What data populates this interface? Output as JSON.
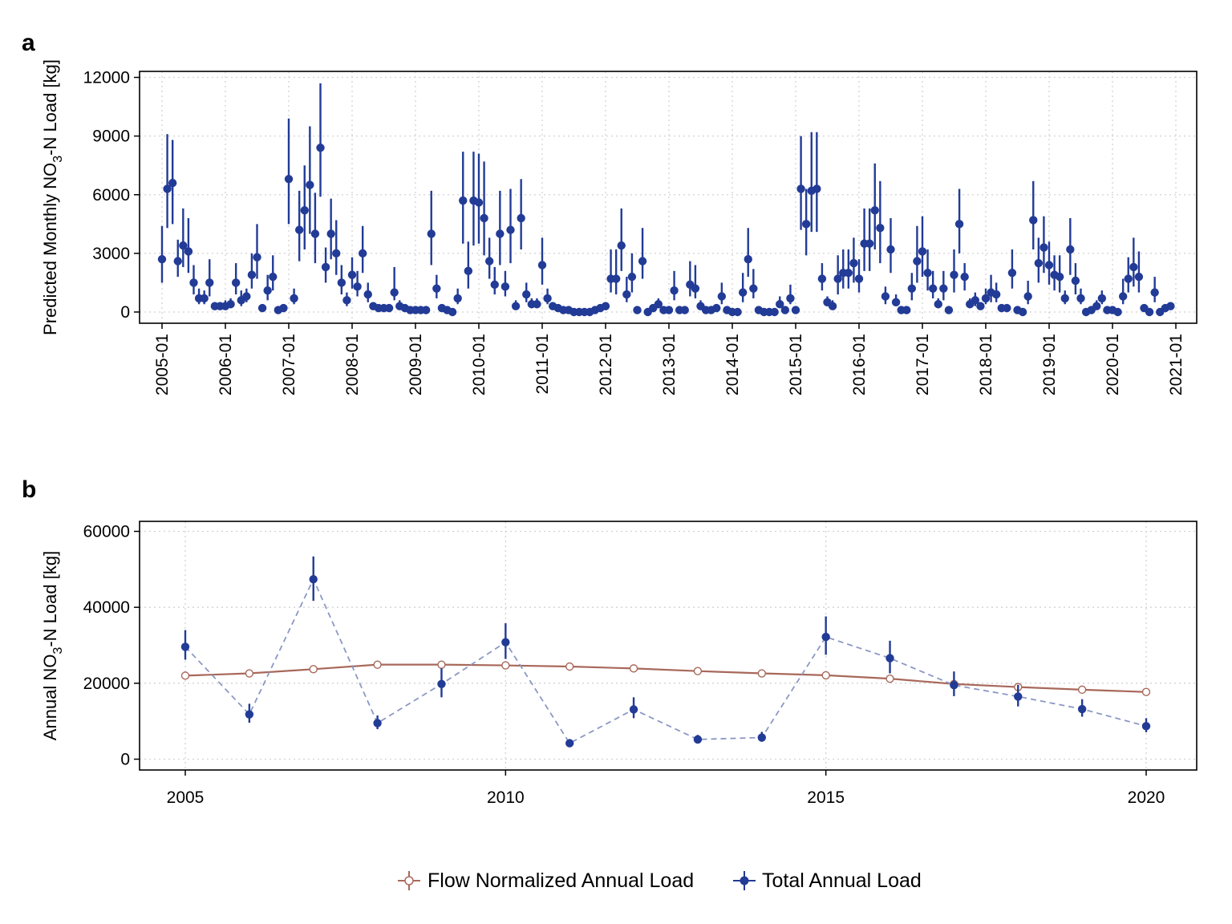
{
  "colors": {
    "total": "#223b96",
    "flow_normalized": "#a8685a",
    "total_dashed": "#8c98c4"
  },
  "panels": {
    "a": {
      "tag": "a",
      "ylabel": "Predicted Monthly NO",
      "ylabel_sub": "3",
      "ylabel_suffix": "-N Load [kg]"
    },
    "b": {
      "tag": "b",
      "ylabel": "Annual NO",
      "ylabel_sub": "3",
      "ylabel_suffix": "-N Load [kg]"
    }
  },
  "legend": {
    "flow_normalized": "Flow Normalized Annual Load",
    "total": "Total Annual Load"
  },
  "chart_data": [
    {
      "type": "scatter",
      "panel": "a",
      "ylabel": "Predicted Monthly NO3-N Load [kg]",
      "ylim": [
        -500,
        12500
      ],
      "yticks": [
        0,
        3000,
        6000,
        9000,
        12000
      ],
      "xticks": [
        "2005-01",
        "2006-01",
        "2007-01",
        "2008-01",
        "2009-01",
        "2010-01",
        "2011-01",
        "2012-01",
        "2013-01",
        "2014-01",
        "2015-01",
        "2016-01",
        "2017-01",
        "2018-01",
        "2019-01",
        "2020-01",
        "2021-01"
      ],
      "grid": true,
      "x_start": "2005-01",
      "series": [
        {
          "name": "Total Annual Load",
          "values": [
            2700,
            6300,
            6600,
            2600,
            3400,
            3100,
            1500,
            700,
            700,
            1500,
            300,
            300,
            300,
            400,
            1500,
            600,
            800,
            1900,
            2800,
            200,
            1100,
            1800,
            100,
            200,
            6800,
            700,
            4200,
            5200,
            6500,
            4000,
            8400,
            2300,
            4000,
            3000,
            1500,
            600,
            1900,
            1300,
            3000,
            900,
            300,
            200,
            200,
            200,
            1000,
            300,
            200,
            100,
            100,
            100,
            100,
            4000,
            1200,
            200,
            100,
            0,
            700,
            5700,
            2100,
            5700,
            5600,
            4800,
            2600,
            1400,
            4000,
            1300,
            4200,
            300,
            4800,
            900,
            400,
            400,
            2400,
            700,
            300,
            200,
            100,
            100,
            0,
            0,
            0,
            0,
            100,
            200,
            300,
            1700,
            1700,
            3400,
            900,
            1800,
            100,
            2600,
            0,
            200,
            400,
            100,
            100,
            1100,
            100,
            100,
            1400,
            1200,
            300,
            100,
            100,
            200,
            800,
            100,
            0,
            0,
            1000,
            2700,
            1200,
            100,
            0,
            0,
            0,
            400,
            100,
            700,
            100,
            6300,
            4500,
            6200,
            6300,
            1700,
            500,
            300,
            1700,
            2000,
            2000,
            2500,
            1700,
            3500,
            3500,
            5200,
            4300,
            800,
            3200,
            500,
            100,
            100,
            1200,
            2600,
            3100,
            2000,
            1200,
            400,
            1200,
            100,
            1900,
            4500,
            1800,
            400,
            600,
            300,
            700,
            1000,
            900,
            200,
            200,
            2000,
            100,
            0,
            800,
            4700,
            2500,
            3300,
            2400,
            1900,
            1800,
            700,
            3200,
            1600,
            700,
            0,
            100,
            300,
            700,
            100,
            100,
            0,
            800,
            1700,
            2300,
            1800,
            200,
            0,
            1000,
            0,
            200,
            300
          ],
          "lower": [
            1500,
            4300,
            4500,
            1800,
            2300,
            2000,
            900,
            400,
            400,
            800,
            100,
            100,
            100,
            200,
            900,
            300,
            500,
            1200,
            1700,
            100,
            600,
            1100,
            50,
            100,
            4500,
            400,
            2600,
            3200,
            4000,
            2500,
            5900,
            1500,
            2700,
            1900,
            900,
            300,
            1200,
            800,
            2000,
            500,
            100,
            100,
            100,
            100,
            600,
            100,
            100,
            50,
            50,
            50,
            50,
            2400,
            700,
            100,
            50,
            0,
            400,
            3500,
            1200,
            3400,
            3500,
            2900,
            1700,
            900,
            2400,
            800,
            2500,
            100,
            3200,
            500,
            200,
            200,
            1400,
            400,
            100,
            100,
            50,
            50,
            0,
            0,
            0,
            0,
            50,
            100,
            100,
            1000,
            900,
            2100,
            500,
            1000,
            50,
            1700,
            0,
            100,
            200,
            50,
            50,
            600,
            50,
            50,
            800,
            700,
            100,
            50,
            50,
            100,
            400,
            50,
            0,
            0,
            500,
            1800,
            700,
            50,
            0,
            0,
            0,
            200,
            50,
            400,
            50,
            4200,
            2900,
            4100,
            4100,
            1100,
            300,
            200,
            900,
            1200,
            1200,
            1500,
            1000,
            2100,
            2100,
            3200,
            2500,
            400,
            2000,
            300,
            50,
            50,
            600,
            1500,
            1800,
            1100,
            700,
            200,
            600,
            50,
            1000,
            3000,
            1100,
            200,
            300,
            100,
            400,
            500,
            500,
            100,
            100,
            1200,
            50,
            0,
            400,
            3200,
            1500,
            2000,
            1400,
            1100,
            1000,
            400,
            1900,
            900,
            400,
            0,
            50,
            100,
            400,
            50,
            50,
            0,
            400,
            1000,
            1300,
            1000,
            100,
            0,
            500,
            0,
            100,
            100
          ],
          "upper": [
            4400,
            9100,
            8800,
            3700,
            5300,
            4800,
            2400,
            1200,
            1100,
            2700,
            500,
            500,
            600,
            700,
            2500,
            1100,
            1200,
            3000,
            4500,
            400,
            1900,
            2900,
            200,
            400,
            9900,
            1200,
            6200,
            7500,
            9500,
            6100,
            11700,
            3300,
            5800,
            4700,
            2400,
            1000,
            2800,
            2100,
            4400,
            1500,
            500,
            400,
            400,
            400,
            2300,
            600,
            400,
            200,
            200,
            200,
            200,
            6200,
            1900,
            400,
            200,
            0,
            1200,
            8200,
            3600,
            8200,
            8100,
            7700,
            3800,
            2300,
            6200,
            2100,
            6300,
            600,
            6800,
            1500,
            700,
            700,
            3800,
            1200,
            500,
            400,
            200,
            200,
            0,
            0,
            0,
            0,
            200,
            300,
            500,
            3200,
            3200,
            5300,
            1800,
            3000,
            200,
            4300,
            0,
            400,
            700,
            200,
            200,
            2100,
            200,
            200,
            2600,
            2400,
            600,
            200,
            200,
            400,
            1500,
            200,
            0,
            0,
            2000,
            4300,
            2200,
            200,
            0,
            0,
            0,
            800,
            200,
            1400,
            200,
            9000,
            6300,
            9200,
            9200,
            2500,
            800,
            600,
            2900,
            3200,
            3200,
            3800,
            2700,
            5300,
            5300,
            7600,
            6700,
            1300,
            4800,
            900,
            200,
            200,
            2000,
            4400,
            4900,
            3200,
            2100,
            700,
            2100,
            200,
            3200,
            6300,
            2500,
            700,
            1000,
            500,
            1200,
            1900,
            1500,
            400,
            400,
            3200,
            200,
            0,
            1600,
            6700,
            3800,
            4900,
            3600,
            2900,
            2900,
            1100,
            4800,
            2500,
            1200,
            0,
            200,
            600,
            1100,
            200,
            200,
            0,
            1700,
            2800,
            3800,
            3100,
            400,
            0,
            1800,
            0,
            400,
            500
          ]
        }
      ]
    },
    {
      "type": "line",
      "panel": "b",
      "ylabel": "Annual NO3-N Load [kg]",
      "ylim": [
        -3000,
        63000
      ],
      "yticks": [
        0,
        20000,
        40000,
        60000
      ],
      "xlim": [
        2004.2,
        2020.8
      ],
      "xticks": [
        2005,
        2010,
        2015,
        2020
      ],
      "grid": true,
      "legend_position": "bottom",
      "x": [
        2005,
        2006,
        2007,
        2008,
        2009,
        2010,
        2011,
        2012,
        2013,
        2014,
        2015,
        2016,
        2017,
        2018,
        2019,
        2020
      ],
      "series": [
        {
          "name": "Flow Normalized Annual Load",
          "values": [
            22000,
            22600,
            23700,
            24900,
            24900,
            24700,
            24400,
            23900,
            23200,
            22600,
            22100,
            21200,
            19800,
            19000,
            18300,
            17700
          ]
        },
        {
          "name": "Total Annual Load",
          "values": [
            29600,
            11800,
            47400,
            9500,
            19800,
            30800,
            4200,
            13100,
            5200,
            5700,
            32200,
            26600,
            19500,
            16500,
            13200,
            8700
          ],
          "lower": [
            26200,
            9600,
            41700,
            7900,
            16300,
            26400,
            3200,
            10800,
            4200,
            4600,
            27500,
            22600,
            16600,
            13900,
            11200,
            7100
          ],
          "upper": [
            34000,
            14600,
            53400,
            11500,
            23900,
            35800,
            5300,
            16300,
            6400,
            7200,
            37600,
            31200,
            23100,
            19600,
            15800,
            10800
          ]
        }
      ]
    }
  ]
}
